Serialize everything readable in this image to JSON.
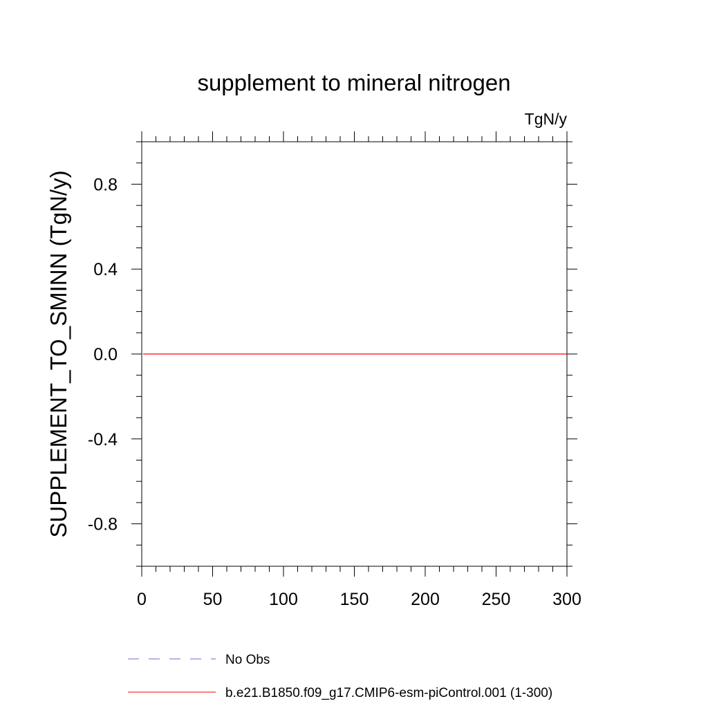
{
  "chart_data": {
    "type": "line",
    "title": "supplement to mineral nitrogen",
    "units_label": "TgN/y",
    "xlabel": "",
    "ylabel": "SUPPLEMENT_TO_SMINN  (TgN/y)",
    "xlim": [
      0,
      300
    ],
    "ylim": [
      -1.0,
      1.0
    ],
    "x_ticks": [
      0,
      50,
      100,
      150,
      200,
      250,
      300
    ],
    "x_tick_labels": [
      "0",
      "50",
      "100",
      "150",
      "200",
      "250",
      "300"
    ],
    "y_ticks": [
      -0.8,
      -0.4,
      0.0,
      0.4,
      0.8
    ],
    "y_tick_labels": [
      "-0.8",
      "-0.4",
      "0.0",
      "0.4",
      "0.8"
    ],
    "grid": false,
    "legend_position": "bottom",
    "series": [
      {
        "name": "No Obs",
        "color": "#6b6bd6",
        "dash": "dashed",
        "x": [],
        "y": []
      },
      {
        "name": "b.e21.B1850.f09_g17.CMIP6-esm-piControl.001 (1-300)",
        "color": "#ff0000",
        "dash": "solid",
        "x": [
          1,
          300
        ],
        "y": [
          0.0,
          0.0
        ]
      }
    ]
  }
}
